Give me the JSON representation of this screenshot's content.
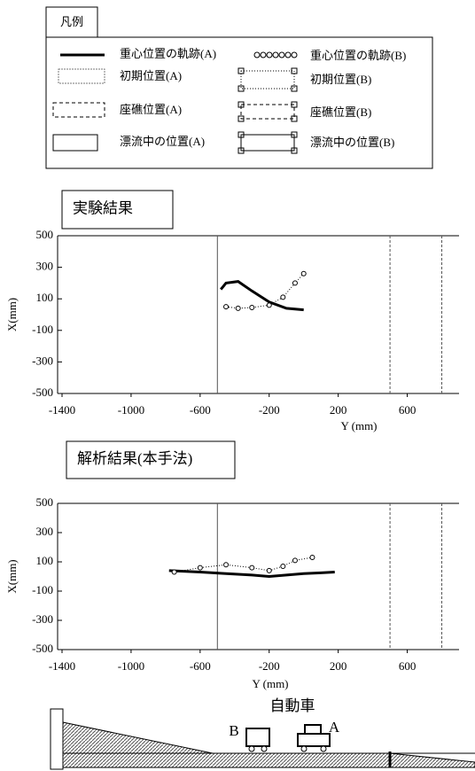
{
  "legend": {
    "title": "凡例",
    "items": [
      "重心位置の軌跡(A)",
      "重心位置の軌跡(B)",
      "初期位置(A)",
      "初期位置(B)",
      "座礁位置(A)",
      "座礁位置(B)",
      "漂流中の位置(A)",
      "漂流中の位置(B)"
    ]
  },
  "chart_data": [
    {
      "type": "line",
      "title": "実験結果",
      "x_label": "Y (mm)",
      "y_label": "X(mm)",
      "xlim": [
        -1400,
        900
      ],
      "ylim": [
        -500,
        500
      ],
      "xticks": [
        -1400,
        -1000,
        -600,
        -200,
        200,
        600
      ],
      "yticks": [
        -500,
        -300,
        -100,
        100,
        300,
        500
      ],
      "reference_lines": [
        -500,
        500,
        800
      ],
      "series": [
        {
          "name": "重心位置の軌跡(A)",
          "color": "#000000",
          "style": "thick",
          "x": [
            -480,
            -450,
            -380,
            -300,
            -200,
            -100,
            0
          ],
          "values": [
            160,
            200,
            210,
            150,
            80,
            40,
            30
          ]
        },
        {
          "name": "重心位置の軌跡(B)",
          "color": "#000000",
          "style": "circles",
          "x": [
            -450,
            -380,
            -300,
            -200,
            -120,
            -50,
            0
          ],
          "values": [
            50,
            40,
            45,
            60,
            110,
            200,
            260
          ]
        }
      ]
    },
    {
      "type": "line",
      "title": "解析結果(本手法)",
      "x_label": "Y (mm)",
      "y_label": "X(mm)",
      "xlim": [
        -1400,
        900
      ],
      "ylim": [
        -500,
        500
      ],
      "xticks": [
        -1400,
        -1000,
        -600,
        -200,
        200,
        600
      ],
      "yticks": [
        -500,
        -300,
        -100,
        100,
        300,
        500
      ],
      "reference_lines": [
        -500,
        500,
        800
      ],
      "series": [
        {
          "name": "重心位置の軌跡(A)",
          "color": "#000000",
          "style": "thick",
          "x": [
            -780,
            -600,
            -450,
            -300,
            -200,
            -100,
            0,
            100,
            180
          ],
          "values": [
            40,
            30,
            20,
            10,
            0,
            10,
            20,
            25,
            30
          ]
        },
        {
          "name": "重心位置の軌跡(B)",
          "color": "#000000",
          "style": "circles",
          "x": [
            -750,
            -600,
            -450,
            -300,
            -200,
            -120,
            -50,
            50
          ],
          "values": [
            30,
            60,
            80,
            60,
            40,
            70,
            110,
            130
          ]
        }
      ]
    }
  ],
  "diagram": {
    "title": "自動車",
    "label_b": "B",
    "label_a": "A"
  }
}
